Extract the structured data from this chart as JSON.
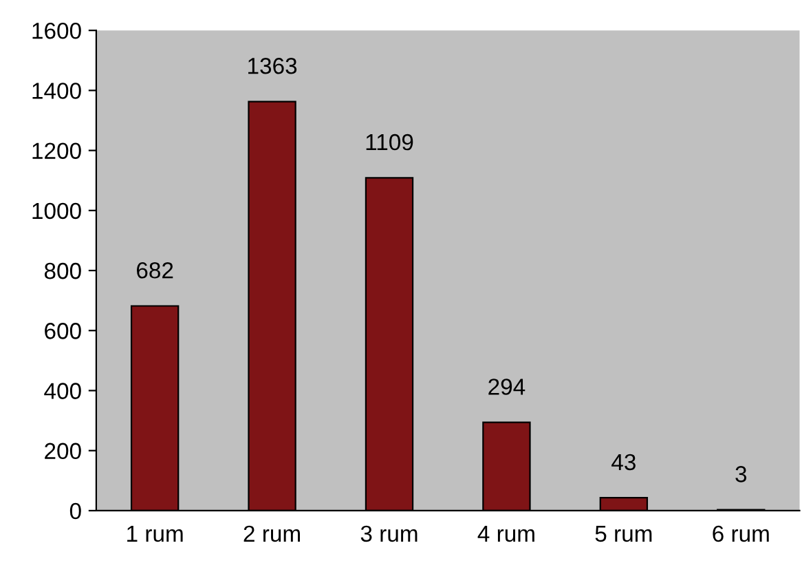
{
  "chart_data": {
    "type": "bar",
    "categories": [
      "1 rum",
      "2 rum",
      "3 rum",
      "4 rum",
      "5 rum",
      "6 rum"
    ],
    "values": [
      682,
      1363,
      1109,
      294,
      43,
      3
    ],
    "color": "#7f1416",
    "ylim": [
      0,
      1600
    ],
    "yticks": [
      0,
      200,
      400,
      600,
      800,
      1000,
      1200,
      1400,
      1600
    ],
    "data_labels": true,
    "grid": false
  }
}
